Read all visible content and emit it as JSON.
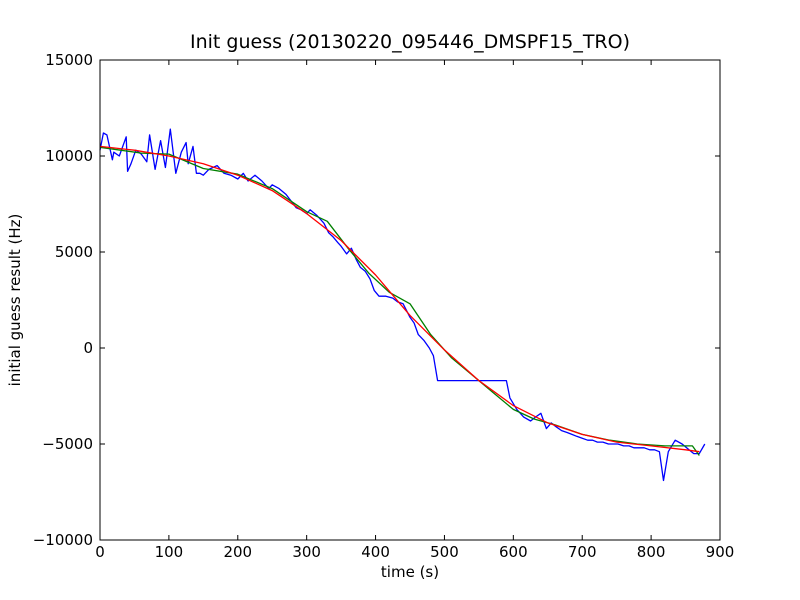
{
  "chart_data": {
    "type": "line",
    "title": "Init guess (20130220_095446_DMSPF15_TRO)",
    "xlabel": "time (s)",
    "ylabel": "initial guess result (Hz)",
    "xlim": [
      0,
      900
    ],
    "ylim": [
      -10000,
      15000
    ],
    "xticks": [
      "0",
      "100",
      "200",
      "300",
      "400",
      "500",
      "600",
      "700",
      "800",
      "900"
    ],
    "yticks": [
      "−10000",
      "−5000",
      "0",
      "5000",
      "10000",
      "15000"
    ],
    "grid": false,
    "legend": "none",
    "series": [
      {
        "color": "#0000ff",
        "x": [
          0,
          5,
          10,
          18,
          20,
          28,
          38,
          40,
          45,
          52,
          60,
          68,
          72,
          80,
          88,
          95,
          102,
          110,
          118,
          125,
          128,
          135,
          140,
          145,
          150,
          158,
          170,
          180,
          190,
          200,
          208,
          215,
          225,
          235,
          245,
          250,
          260,
          270,
          285,
          292,
          300,
          305,
          315,
          325,
          332,
          338,
          345,
          350,
          358,
          365,
          372,
          378,
          385,
          392,
          398,
          405,
          415,
          425,
          432,
          440,
          450,
          456,
          462,
          470,
          478,
          484,
          490,
          496,
          505,
          515,
          525,
          535,
          545,
          555,
          565,
          575,
          590,
          595,
          605,
          615,
          625,
          632,
          640,
          648,
          655,
          662,
          670,
          678,
          685,
          692,
          700,
          708,
          715,
          722,
          730,
          738,
          745,
          752,
          760,
          768,
          775,
          782,
          790,
          798,
          805,
          812,
          818,
          825,
          835,
          845,
          855,
          862,
          870,
          878
        ],
        "y": [
          10300,
          11200,
          11100,
          9800,
          10200,
          10000,
          11000,
          9200,
          9600,
          10300,
          10100,
          9700,
          11100,
          9300,
          10800,
          9400,
          11400,
          9100,
          10200,
          10700,
          9600,
          10500,
          9100,
          9100,
          9000,
          9300,
          9500,
          9100,
          9000,
          8800,
          9100,
          8700,
          9000,
          8700,
          8300,
          8500,
          8300,
          8000,
          7300,
          7200,
          7000,
          7200,
          6900,
          6500,
          6000,
          5800,
          5500,
          5300,
          4900,
          5200,
          4600,
          4200,
          4000,
          3600,
          3000,
          2700,
          2700,
          2600,
          2400,
          2300,
          1600,
          1300,
          700,
          400,
          0,
          -400,
          -1700,
          -1700,
          -1700,
          -1700,
          -1700,
          -1700,
          -1700,
          -1700,
          -1700,
          -1700,
          -1700,
          -2600,
          -3200,
          -3600,
          -3800,
          -3600,
          -3400,
          -4200,
          -3900,
          -4100,
          -4300,
          -4400,
          -4500,
          -4600,
          -4700,
          -4800,
          -4800,
          -4900,
          -4900,
          -5000,
          -5000,
          -5000,
          -5100,
          -5100,
          -5200,
          -5200,
          -5200,
          -5300,
          -5300,
          -5400,
          -6900,
          -5400,
          -4800,
          -5000,
          -5300,
          -5500,
          -5500,
          -5000
        ]
      },
      {
        "color": "#008000",
        "x": [
          0,
          30,
          60,
          100,
          150,
          200,
          250,
          300,
          330,
          360,
          390,
          420,
          450,
          480,
          510,
          540,
          570,
          600,
          630,
          660,
          700,
          740,
          780,
          820,
          860,
          870
        ],
        "y": [
          10450,
          10300,
          10150,
          10100,
          9350,
          9050,
          8300,
          7100,
          6600,
          5200,
          3900,
          2900,
          2300,
          700,
          -500,
          -1400,
          -2300,
          -3200,
          -3700,
          -4000,
          -4500,
          -4800,
          -5000,
          -5100,
          -5100,
          -5600
        ]
      },
      {
        "color": "#ff0000",
        "x": [
          0,
          50,
          100,
          150,
          200,
          250,
          300,
          350,
          400,
          450,
          500,
          550,
          600,
          650,
          700,
          750,
          800,
          850,
          870
        ],
        "y": [
          10500,
          10300,
          10000,
          9600,
          9000,
          8200,
          7000,
          5600,
          3800,
          1700,
          -100,
          -1700,
          -3000,
          -3900,
          -4500,
          -4900,
          -5100,
          -5300,
          -5400
        ]
      }
    ]
  }
}
